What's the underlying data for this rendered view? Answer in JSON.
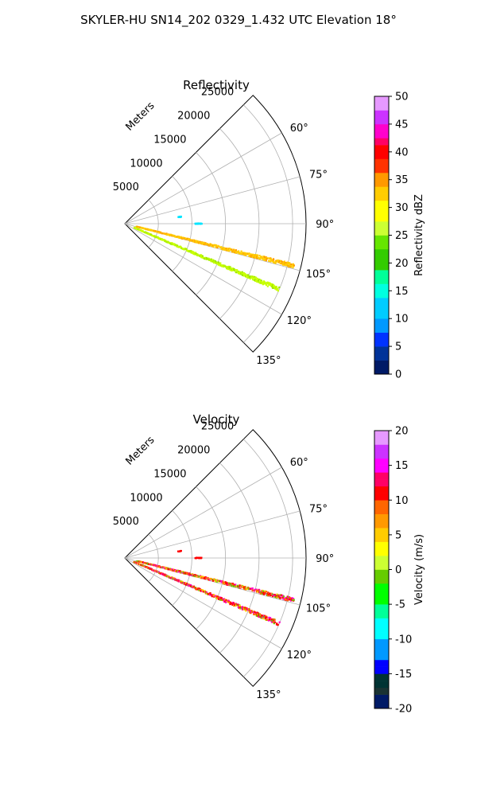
{
  "suptitle": "SKYLER-HU  SN14_202  0329_1.432 UTC Elevation 18°",
  "chart_data": [
    {
      "type": "scatter",
      "projection": "polar-sector",
      "title": "Reflectivity",
      "radial_label": "Meters",
      "radial_range": [
        0,
        27000
      ],
      "radial_ticks": [
        5000,
        10000,
        15000,
        20000,
        25000
      ],
      "azimuth_range_deg": [
        45,
        135
      ],
      "azimuth_ticks": [
        "60°",
        "75°",
        "90°",
        "105°",
        "120°",
        "135°"
      ],
      "grid": true,
      "colorbar": {
        "label": "Reflectivity dBZ",
        "range": [
          0,
          50
        ],
        "ticks": [
          0,
          5,
          10,
          15,
          20,
          25,
          30,
          35,
          40,
          45,
          50
        ]
      },
      "series": [
        {
          "azimuth_deg": 104,
          "range_m": [
            1800,
            26000
          ],
          "value_range": [
            22,
            30
          ],
          "color": "#ffcc00"
        },
        {
          "azimuth_deg": 113,
          "range_m": [
            1500,
            25000
          ],
          "value_range": [
            18,
            25
          ],
          "color": "#c8ff00"
        },
        {
          "azimuth_deg": 83,
          "range_m": [
            8000,
            8500
          ],
          "value_range": [
            10,
            13
          ],
          "color": "#00e5ff"
        },
        {
          "azimuth_deg": 90,
          "range_m": [
            10500,
            11500
          ],
          "value_range": [
            10,
            13
          ],
          "color": "#00e5ff"
        }
      ]
    },
    {
      "type": "scatter",
      "projection": "polar-sector",
      "title": "Velocity",
      "radial_label": "Meters",
      "radial_range": [
        0,
        27000
      ],
      "radial_ticks": [
        5000,
        10000,
        15000,
        20000,
        25000
      ],
      "azimuth_range_deg": [
        45,
        135
      ],
      "azimuth_ticks": [
        "60°",
        "75°",
        "90°",
        "105°",
        "120°",
        "135°"
      ],
      "grid": true,
      "colorbar": {
        "label": "Velocity (m/s)",
        "range": [
          -20,
          20
        ],
        "ticks": [
          -20,
          -15,
          -10,
          -5,
          0,
          5,
          10,
          15,
          20
        ]
      },
      "series": [
        {
          "azimuth_deg": 104,
          "range_m": [
            1800,
            26000
          ],
          "value_range": [
            -5,
            15
          ],
          "color": "#ff0000"
        },
        {
          "azimuth_deg": 113,
          "range_m": [
            1500,
            25000
          ],
          "value_range": [
            -5,
            15
          ],
          "color": "#ff00cc"
        },
        {
          "azimuth_deg": 83,
          "range_m": [
            8000,
            8500
          ],
          "value_range": [
            8,
            12
          ],
          "color": "#ff0000"
        },
        {
          "azimuth_deg": 90,
          "range_m": [
            10500,
            11500
          ],
          "value_range": [
            8,
            12
          ],
          "color": "#ff0000"
        }
      ]
    }
  ]
}
